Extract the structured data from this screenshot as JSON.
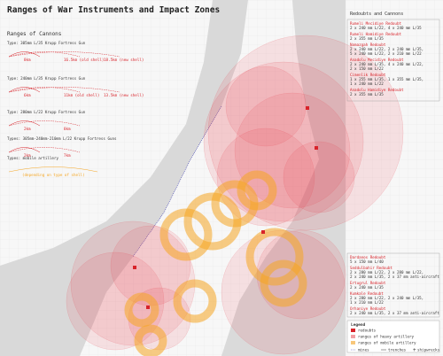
{
  "title": "Ranges of War Instruments and Impact Zones",
  "cannon_ranges": {
    "heading": "Ranges of Cannons",
    "types": [
      {
        "label": "Type: 305mm L/35 Krupp Fortress Gun",
        "ranges": [
          "8km",
          "16.5km (old shell)",
          "18.5km (new shell)"
        ]
      },
      {
        "label": "Type: 240mm L/35 Krupp Fortress Gun",
        "ranges": [
          "6km",
          "11km (old shell)",
          "13.5km (new shell)"
        ]
      },
      {
        "label": "Type: 280mm L/22 Krupp Fortress Gun",
        "ranges": [
          "2km",
          "8km"
        ]
      },
      {
        "label": "Types: 305mm-240mm-210mm L/22 Krupp Fortress Guns",
        "ranges": [
          "2km",
          "7km"
        ]
      },
      {
        "label": "Types: mobile artillery",
        "ranges": [
          "(depending on type of shell)"
        ]
      }
    ]
  },
  "redoubts": {
    "heading": "Redoubts and Cannons",
    "north": [
      {
        "name": "Rumeli Mecidiye Redoubt",
        "cannons": [
          "2 x 240 mm L/22, 4 x 240 mm L/35"
        ]
      },
      {
        "name": "Rumeli Hamidiye Redoubt",
        "cannons": [
          "2 x 355 mm L/35"
        ]
      },
      {
        "name": "Namazgah Redoubt",
        "cannons": [
          "2 x 240 mm L/22, 2 x 240 mm L/35,",
          "5 x 240 mm L/22, 2 x 210 mm L/22"
        ]
      },
      {
        "name": "Anadolu Mecidiye Redoubt",
        "cannons": [
          "2 x 240 mm L/35, 4 x 240 mm L/22,",
          "2 x 150 mm L/22"
        ]
      },
      {
        "name": "Cimenlik Redoubt",
        "cannons": [
          "1 x 255 mm L/35, 1 x 355 mm L/35,",
          "1 x 240 mm L/22"
        ]
      },
      {
        "name": "Anadolu Hamidiye Redoubt",
        "cannons": [
          "2 x 355 mm L/35"
        ]
      }
    ],
    "south": [
      {
        "name": "Dardanos Redoubt",
        "cannons": [
          "5 x 150 mm L/40"
        ]
      },
      {
        "name": "Seddulbahir Redoubt",
        "cannons": [
          "2 x 280 mm L/22, 2 x 280 mm L/22,",
          "2 x 240 mm L/35, 2 x 37 mm anti-aircraft"
        ]
      },
      {
        "name": "Ertugrul Redoubt",
        "cannons": [
          "2 x 240 mm L/35"
        ]
      },
      {
        "name": "Kumkale Redoubt",
        "cannons": [
          "2 x 280 mm L/22, 2 x 240 mm L/35,",
          "1 x 210 mm L/22"
        ]
      },
      {
        "name": "Orhaniye Redoubt",
        "cannons": [
          "2 x 240 mm L/35, 2 x 37 mm anti-aircraft"
        ]
      }
    ]
  },
  "legend": {
    "title": "Legend",
    "redoubts": "redoubts",
    "heavy": "ranges of heavy artillery",
    "mobile": "ranges of mobile artillery",
    "mines": "mines",
    "trenches": "trenches",
    "shipwrecks": "shipwrecks"
  }
}
